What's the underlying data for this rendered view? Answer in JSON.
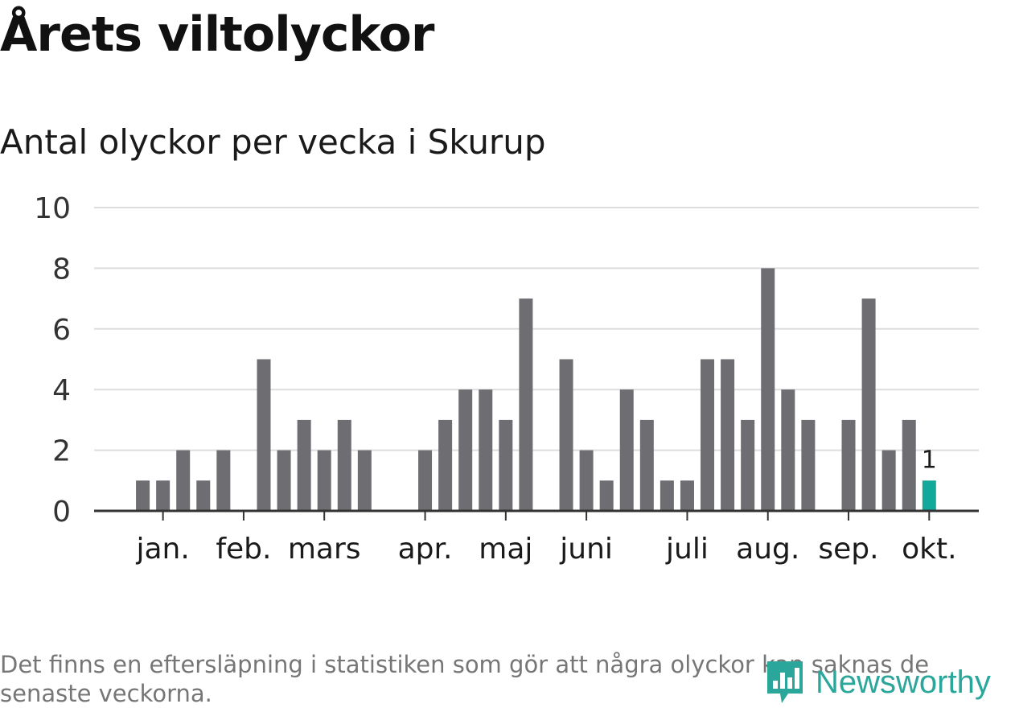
{
  "title": "Årets viltolyckor",
  "subtitle": "Antal olyckor per vecka i Skurup",
  "footnote": "Det finns en eftersläpning i statistiken som gör att några olyckor kan saknas de senaste veckorna.",
  "logo": {
    "text": "Newsworthy",
    "icon": "newsworthy-logo-icon"
  },
  "colors": {
    "bar": "#6e6d72",
    "highlight": "#14a89a",
    "grid": "#dddddd",
    "axis": "#333333",
    "logo": "#2aa79a"
  },
  "chart_data": {
    "type": "bar",
    "title": "Årets viltolyckor",
    "subtitle": "Antal olyckor per vecka i Skurup",
    "xlabel": "",
    "ylabel": "",
    "ylim": [
      0,
      10
    ],
    "yticks": [
      0,
      2,
      4,
      6,
      8,
      10
    ],
    "grid": true,
    "weeks": [
      1,
      2,
      3,
      4,
      5,
      6,
      7,
      8,
      9,
      10,
      11,
      12,
      13,
      14,
      15,
      16,
      17,
      18,
      19,
      20,
      21,
      22,
      23,
      24,
      25,
      26,
      27,
      28,
      29,
      30,
      31,
      32,
      33,
      34,
      35,
      36,
      37,
      38,
      39,
      40,
      41,
      42
    ],
    "values": [
      0,
      1,
      1,
      2,
      1,
      2,
      0,
      5,
      2,
      3,
      2,
      3,
      2,
      0,
      0,
      2,
      3,
      4,
      4,
      3,
      7,
      0,
      5,
      2,
      1,
      4,
      3,
      1,
      1,
      5,
      5,
      3,
      8,
      4,
      3,
      0,
      3,
      7,
      2,
      3,
      1,
      null
    ],
    "highlight_week": 41,
    "highlight_label": "1",
    "month_labels": [
      {
        "label": "jan.",
        "week": 3
      },
      {
        "label": "feb.",
        "week": 7
      },
      {
        "label": "mars",
        "week": 11
      },
      {
        "label": "apr.",
        "week": 16
      },
      {
        "label": "maj",
        "week": 20
      },
      {
        "label": "juni",
        "week": 24
      },
      {
        "label": "juli",
        "week": 29
      },
      {
        "label": "aug.",
        "week": 33
      },
      {
        "label": "sep.",
        "week": 37
      },
      {
        "label": "okt.",
        "week": 41
      }
    ]
  }
}
